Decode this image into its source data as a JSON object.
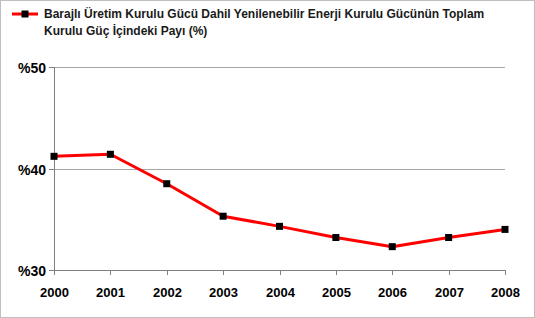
{
  "chart_data": {
    "type": "line",
    "categories": [
      "2000",
      "2001",
      "2002",
      "2003",
      "2004",
      "2005",
      "2006",
      "2007",
      "2008"
    ],
    "series": [
      {
        "name": "Barajlı Üretim Kurulu Gücü Dahil Yenilenebilir Enerji Kurulu Gücünün Toplam Kurulu Güç İçindeki Payı (%)",
        "color": "#ff0000",
        "marker": "square",
        "values": [
          41.2,
          41.4,
          38.5,
          35.3,
          34.3,
          33.2,
          32.3,
          33.2,
          34.0
        ]
      }
    ],
    "ylim": [
      30,
      50
    ],
    "yticks": [
      {
        "value": 30,
        "label": "%30"
      },
      {
        "value": 40,
        "label": "%40"
      },
      {
        "value": 50,
        "label": "%50"
      }
    ],
    "grid": true,
    "legend": "top-left"
  }
}
